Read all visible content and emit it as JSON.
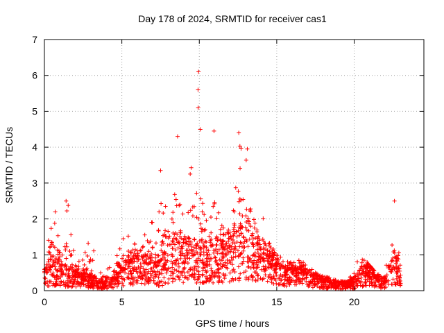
{
  "chart_data": {
    "type": "scatter",
    "title": "Day 178 of 2024, SRMTID for receiver cas1",
    "xlabel": "GPS time / hours",
    "ylabel": "SRMTID / TECUs",
    "xlim": [
      0,
      24.5
    ],
    "ylim": [
      0,
      7
    ],
    "x_ticks": [
      0,
      5,
      10,
      15,
      20
    ],
    "y_ticks": [
      0,
      1,
      2,
      3,
      4,
      5,
      6,
      7
    ],
    "grid": true,
    "marker": "plus",
    "color": "#ff0000",
    "envelope": {
      "hours": [
        0,
        0.5,
        1,
        1.5,
        2,
        2.5,
        3,
        3.5,
        4,
        4.5,
        5,
        5.5,
        6,
        6.5,
        7,
        7.5,
        8,
        8.5,
        9,
        9.5,
        10,
        10.5,
        11,
        11.5,
        12,
        12.5,
        13,
        13.5,
        14,
        14.5,
        15,
        15.5,
        16,
        16.5,
        17,
        17.5,
        18,
        18.5,
        19,
        19.5,
        20,
        20.5,
        21,
        21.5,
        22,
        22.5,
        23
      ],
      "median_tecu": [
        0.35,
        0.6,
        0.5,
        0.4,
        0.35,
        0.3,
        0.3,
        0.2,
        0.2,
        0.25,
        0.45,
        0.6,
        0.65,
        0.6,
        0.55,
        0.5,
        0.8,
        1.0,
        0.9,
        0.85,
        0.8,
        0.8,
        0.85,
        0.9,
        1.0,
        1.1,
        1.2,
        1.0,
        0.8,
        0.75,
        0.6,
        0.5,
        0.45,
        0.5,
        0.4,
        0.3,
        0.25,
        0.2,
        0.15,
        0.15,
        0.2,
        0.4,
        0.5,
        0.3,
        0.2,
        0.7,
        0.3
      ],
      "max_tecu": [
        0.9,
        2.2,
        1.6,
        2.5,
        1.0,
        0.9,
        1.6,
        0.8,
        0.6,
        0.9,
        1.5,
        1.6,
        2.0,
        2.35,
        2.0,
        3.35,
        2.0,
        4.3,
        3.0,
        3.5,
        6.1,
        1.7,
        4.45,
        1.8,
        2.0,
        4.4,
        3.95,
        3.2,
        2.1,
        1.9,
        1.0,
        0.9,
        0.8,
        0.85,
        0.7,
        0.5,
        0.4,
        0.35,
        0.3,
        0.3,
        0.6,
        1.1,
        0.7,
        0.45,
        0.6,
        2.5,
        1.0
      ]
    },
    "notable_points": [
      {
        "x": 9.95,
        "y": 6.1
      },
      {
        "x": 9.92,
        "y": 5.6
      },
      {
        "x": 9.93,
        "y": 5.1
      },
      {
        "x": 10.95,
        "y": 4.45
      },
      {
        "x": 8.6,
        "y": 4.3
      },
      {
        "x": 12.55,
        "y": 4.4
      },
      {
        "x": 13.1,
        "y": 3.95
      },
      {
        "x": 7.5,
        "y": 3.35
      },
      {
        "x": 1.4,
        "y": 2.5
      },
      {
        "x": 22.6,
        "y": 2.5
      },
      {
        "x": 0.7,
        "y": 2.2
      }
    ]
  }
}
